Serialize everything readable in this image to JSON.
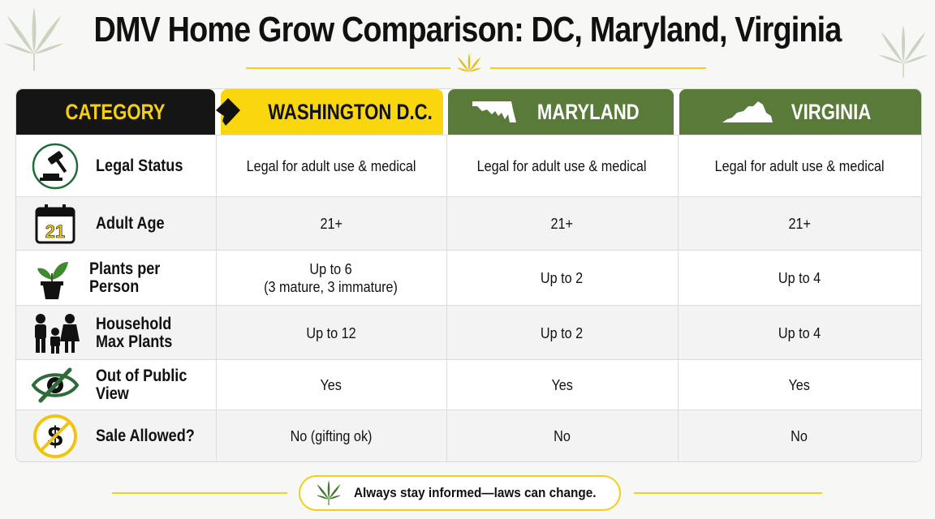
{
  "title": "DMV Home Grow Comparison: DC, Maryland, Virginia",
  "colors": {
    "accent_yellow": "#f9d60d",
    "header_dark": "#151515",
    "header_green": "#5a7a3a"
  },
  "headers": {
    "category": "CATEGORY",
    "dc": "WASHINGTON D.C.",
    "md": "MARYLAND",
    "va": "VIRGINIA"
  },
  "rows": [
    {
      "icon": "gavel-icon",
      "label": "Legal Status",
      "dc": "Legal for adult use & medical",
      "md": "Legal for adult use & medical",
      "va": "Legal for adult use & medical"
    },
    {
      "icon": "calendar-icon",
      "icon_text": "21",
      "label": "Adult Age",
      "dc": "21+",
      "md": "21+",
      "va": "21+"
    },
    {
      "icon": "potted-plant-icon",
      "label": "Plants per Person",
      "dc": "Up to 6\n(3 mature, 3 immature)",
      "md": "Up to 2",
      "va": "Up to 4"
    },
    {
      "icon": "family-icon",
      "label": "Household\nMax Plants",
      "dc": "Up to 12",
      "md": "Up to 2",
      "va": "Up to 4"
    },
    {
      "icon": "eye-slash-icon",
      "label": "Out of Public View",
      "dc": "Yes",
      "md": "Yes",
      "va": "Yes"
    },
    {
      "icon": "no-dollar-icon",
      "label": "Sale Allowed?",
      "dc": "No (gifting ok)",
      "md": "No",
      "va": "No"
    }
  ],
  "footer": {
    "text": "Always stay informed—laws can change.",
    "icon": "cannabis-leaf-icon"
  }
}
